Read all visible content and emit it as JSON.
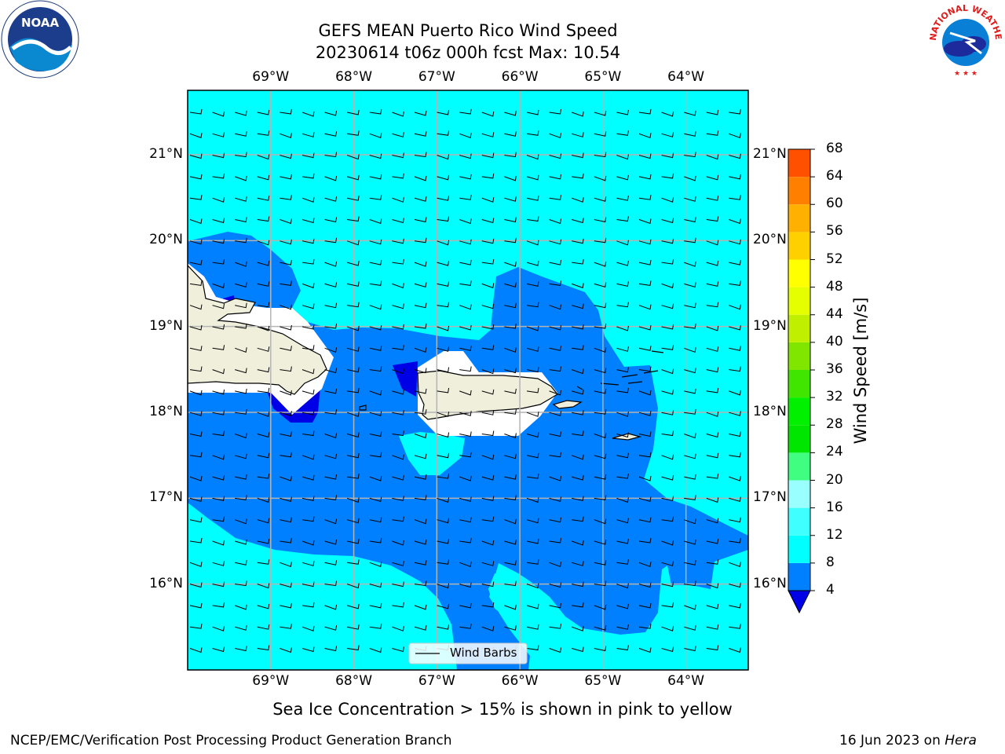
{
  "header": {
    "title_line1": "GEFS MEAN Puerto Rico Wind Speed",
    "title_line2": "20230614 t06z 000h fcst   Max: 10.54"
  },
  "map": {
    "lon_ticks": [
      "69°W",
      "68°W",
      "67°W",
      "66°W",
      "65°W",
      "64°W"
    ],
    "lat_ticks": [
      "21°N",
      "20°N",
      "19°N",
      "18°N",
      "17°N",
      "16°N"
    ],
    "lon_range": [
      -70.0,
      -63.25
    ],
    "lat_range": [
      15.0,
      21.75
    ],
    "legend_label": "Wind Barbs",
    "ocean_color": "#00ffff",
    "wind_band_color": "#0080ff",
    "low_wind_color": "#0000e6",
    "land_color": "#efefdc"
  },
  "colorbar": {
    "label": "Wind Speed [m/s]",
    "ticks": [
      "68",
      "64",
      "60",
      "56",
      "52",
      "48",
      "44",
      "40",
      "36",
      "32",
      "28",
      "24",
      "20",
      "16",
      "12",
      "8",
      "4"
    ],
    "colors": [
      "#0000e6",
      "#0080ff",
      "#00ffff",
      "#40ffff",
      "#99ffff",
      "#40ff80",
      "#00e600",
      "#00f000",
      "#40e600",
      "#80e600",
      "#c0f000",
      "#e6ff00",
      "#ffff00",
      "#ffd000",
      "#ffb000",
      "#ff8000",
      "#ff5000",
      "#ff2000",
      "#ff0000"
    ]
  },
  "notes": {
    "sea_ice": "Sea Ice Concentration > 15% is shown in pink to yellow"
  },
  "footer": {
    "left": "NCEP/EMC/Verification Post Processing Product Generation Branch",
    "right_date": "16 Jun 2023 on ",
    "right_host": "Hera"
  },
  "logos": {
    "noaa_text": "NOAA",
    "nws_text": "NATIONAL WEATHER SERVICE"
  }
}
